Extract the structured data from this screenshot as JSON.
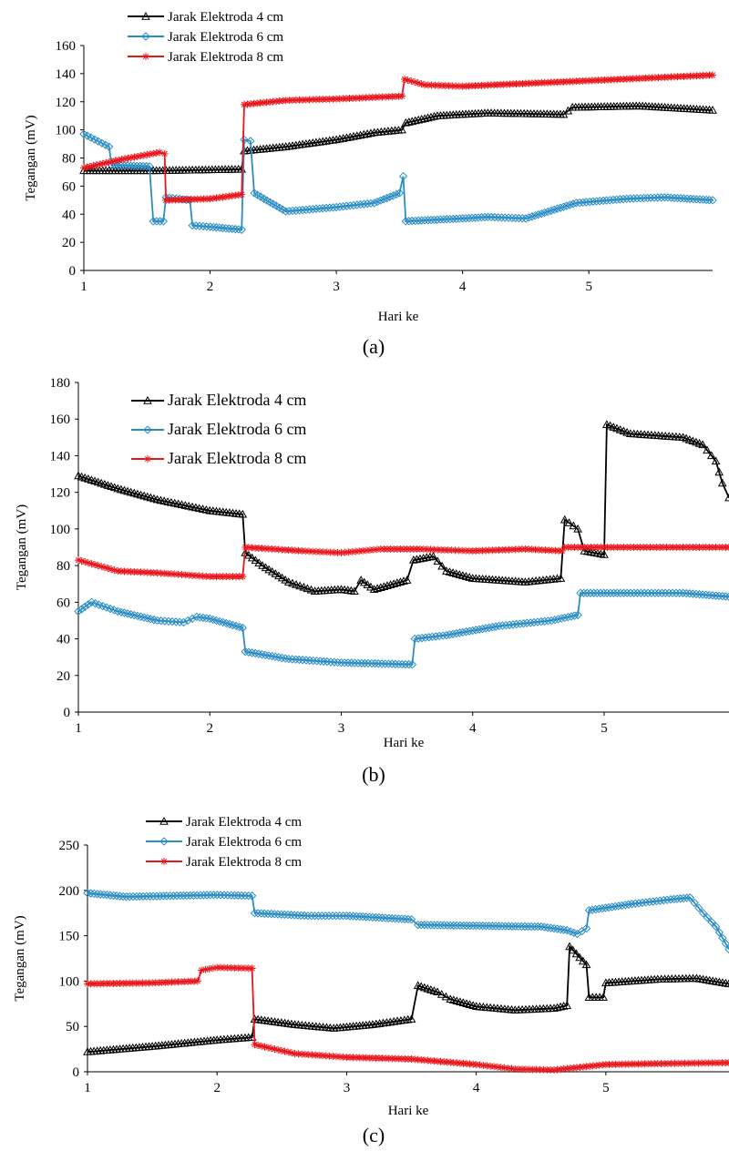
{
  "figure": {
    "colors": {
      "series4": "#000000",
      "series6": "#2b8cc4",
      "series8": "#e8161b",
      "axis": "#000000"
    }
  },
  "chart_data": [
    {
      "type": "line",
      "panel_label": "(a)",
      "xlabel": "Hari ke",
      "ylabel": "Tegangan (mV)",
      "xlim": [
        1,
        5.98
      ],
      "ylim": [
        0,
        160
      ],
      "xticks": [
        1,
        2,
        3,
        4,
        5
      ],
      "yticks": [
        0,
        20,
        40,
        60,
        80,
        100,
        120,
        140,
        160
      ],
      "grid": false,
      "legend_position": "top-left",
      "series": [
        {
          "name": "Jarak Elektroda 4 cm",
          "marker": "triangle",
          "points": [
            [
              1,
              71
            ],
            [
              1.6,
              71
            ],
            [
              2.25,
              72
            ],
            [
              2.27,
              85
            ],
            [
              2.6,
              88
            ],
            [
              3.0,
              93
            ],
            [
              3.3,
              98
            ],
            [
              3.52,
              100
            ],
            [
              3.55,
              105
            ],
            [
              3.8,
              110
            ],
            [
              4.2,
              112
            ],
            [
              4.8,
              111
            ],
            [
              4.87,
              116
            ],
            [
              5.4,
              117
            ],
            [
              5.98,
              114
            ]
          ]
        },
        {
          "name": "Jarak Elektroda 6 cm",
          "marker": "diamond",
          "points": [
            [
              1,
              97
            ],
            [
              1.2,
              88
            ],
            [
              1.22,
              75
            ],
            [
              1.52,
              74
            ],
            [
              1.55,
              35
            ],
            [
              1.63,
              35
            ],
            [
              1.65,
              52
            ],
            [
              1.84,
              50
            ],
            [
              1.86,
              32
            ],
            [
              2.0,
              31
            ],
            [
              2.25,
              29
            ],
            [
              2.27,
              93
            ],
            [
              2.32,
              92
            ],
            [
              2.35,
              55
            ],
            [
              2.6,
              42
            ],
            [
              3.0,
              45
            ],
            [
              3.3,
              48
            ],
            [
              3.5,
              55
            ],
            [
              3.53,
              67
            ],
            [
              3.55,
              35
            ],
            [
              4.0,
              37
            ],
            [
              4.2,
              38
            ],
            [
              4.5,
              37
            ],
            [
              4.9,
              48
            ],
            [
              5.3,
              51
            ],
            [
              5.6,
              52
            ],
            [
              5.98,
              50
            ]
          ]
        },
        {
          "name": "Jarak Elektroda 8 cm",
          "marker": "star",
          "points": [
            [
              1,
              73
            ],
            [
              1.3,
              79
            ],
            [
              1.6,
              84
            ],
            [
              1.64,
              83
            ],
            [
              1.65,
              50
            ],
            [
              2.0,
              51
            ],
            [
              2.25,
              54
            ],
            [
              2.27,
              118
            ],
            [
              2.6,
              121
            ],
            [
              3.0,
              122
            ],
            [
              3.52,
              124
            ],
            [
              3.54,
              136
            ],
            [
              3.7,
              132
            ],
            [
              4.0,
              131
            ],
            [
              4.5,
              133
            ],
            [
              5.0,
              135
            ],
            [
              5.5,
              137
            ],
            [
              5.98,
              139
            ]
          ]
        }
      ]
    },
    {
      "type": "line",
      "panel_label": "(b)",
      "xlabel": "Hari ke",
      "ylabel": "Tegangan (mV)",
      "xlim": [
        1,
        5.95
      ],
      "ylim": [
        0,
        180
      ],
      "xticks": [
        1,
        2,
        3,
        4,
        5
      ],
      "yticks": [
        0,
        20,
        40,
        60,
        80,
        100,
        120,
        140,
        160,
        180
      ],
      "grid": false,
      "legend_position": "top-left",
      "series": [
        {
          "name": "Jarak Elektroda 4 cm",
          "marker": "triangle",
          "points": [
            [
              1,
              129
            ],
            [
              1.3,
              122
            ],
            [
              1.6,
              116
            ],
            [
              2.0,
              110
            ],
            [
              2.25,
              108
            ],
            [
              2.27,
              87
            ],
            [
              2.4,
              80
            ],
            [
              2.6,
              71
            ],
            [
              2.8,
              66
            ],
            [
              3.0,
              67
            ],
            [
              3.1,
              66
            ],
            [
              3.15,
              72
            ],
            [
              3.25,
              67
            ],
            [
              3.5,
              72
            ],
            [
              3.55,
              83
            ],
            [
              3.7,
              85
            ],
            [
              3.8,
              77
            ],
            [
              4.0,
              73
            ],
            [
              4.4,
              71
            ],
            [
              4.67,
              73
            ],
            [
              4.7,
              105
            ],
            [
              4.8,
              100
            ],
            [
              4.85,
              88
            ],
            [
              5.0,
              86
            ],
            [
              5.02,
              157
            ],
            [
              5.2,
              152
            ],
            [
              5.6,
              150
            ],
            [
              5.75,
              146
            ],
            [
              5.85,
              137
            ],
            [
              5.9,
              125
            ],
            [
              5.95,
              117
            ]
          ]
        },
        {
          "name": "Jarak Elektroda 6 cm",
          "marker": "diamond",
          "points": [
            [
              1,
              55
            ],
            [
              1.1,
              60
            ],
            [
              1.3,
              55
            ],
            [
              1.6,
              50
            ],
            [
              1.8,
              49
            ],
            [
              1.9,
              52
            ],
            [
              2.0,
              51
            ],
            [
              2.25,
              46
            ],
            [
              2.27,
              33
            ],
            [
              2.6,
              29
            ],
            [
              3.0,
              27
            ],
            [
              3.54,
              26
            ],
            [
              3.56,
              40
            ],
            [
              3.8,
              42
            ],
            [
              4.2,
              47
            ],
            [
              4.6,
              50
            ],
            [
              4.8,
              53
            ],
            [
              4.82,
              65
            ],
            [
              5.2,
              65
            ],
            [
              5.6,
              65
            ],
            [
              5.95,
              63
            ]
          ]
        },
        {
          "name": "Jarak Elektroda 8 cm",
          "marker": "star",
          "points": [
            [
              1,
              83
            ],
            [
              1.3,
              77
            ],
            [
              1.6,
              76
            ],
            [
              2.0,
              74
            ],
            [
              2.25,
              74
            ],
            [
              2.27,
              90
            ],
            [
              2.7,
              88
            ],
            [
              3.0,
              87
            ],
            [
              3.3,
              89
            ],
            [
              3.6,
              89
            ],
            [
              4.0,
              88
            ],
            [
              4.4,
              89
            ],
            [
              4.68,
              88
            ],
            [
              4.7,
              90
            ],
            [
              5.2,
              90
            ],
            [
              5.95,
              90
            ]
          ]
        }
      ]
    },
    {
      "type": "line",
      "panel_label": "(c)",
      "xlabel": "Hari ke",
      "ylabel": "Tegangan (mV)",
      "xlim": [
        1,
        5.95
      ],
      "ylim": [
        0,
        250
      ],
      "xticks": [
        1,
        2,
        3,
        4,
        5
      ],
      "yticks": [
        0,
        50,
        100,
        150,
        200,
        250
      ],
      "grid": false,
      "legend_position": "top-left",
      "series": [
        {
          "name": "Jarak Elektroda 4 cm",
          "marker": "triangle",
          "points": [
            [
              1,
              22
            ],
            [
              1.5,
              28
            ],
            [
              2.0,
              35
            ],
            [
              2.27,
              38
            ],
            [
              2.29,
              58
            ],
            [
              2.6,
              52
            ],
            [
              2.9,
              48
            ],
            [
              3.2,
              52
            ],
            [
              3.5,
              58
            ],
            [
              3.55,
              95
            ],
            [
              3.7,
              88
            ],
            [
              3.8,
              80
            ],
            [
              4.0,
              72
            ],
            [
              4.3,
              68
            ],
            [
              4.6,
              70
            ],
            [
              4.7,
              73
            ],
            [
              4.72,
              138
            ],
            [
              4.85,
              118
            ],
            [
              4.87,
              82
            ],
            [
              4.98,
              82
            ],
            [
              5.0,
              98
            ],
            [
              5.4,
              102
            ],
            [
              5.7,
              103
            ],
            [
              5.95,
              97
            ]
          ]
        },
        {
          "name": "Jarak Elektroda 6 cm",
          "marker": "diamond",
          "points": [
            [
              1,
              197
            ],
            [
              1.3,
              193
            ],
            [
              2.0,
              195
            ],
            [
              2.27,
              194
            ],
            [
              2.29,
              175
            ],
            [
              2.7,
              172
            ],
            [
              3.0,
              172
            ],
            [
              3.5,
              168
            ],
            [
              3.55,
              162
            ],
            [
              4.0,
              161
            ],
            [
              4.5,
              160
            ],
            [
              4.7,
              156
            ],
            [
              4.78,
              152
            ],
            [
              4.85,
              158
            ],
            [
              4.87,
              178
            ],
            [
              5.2,
              185
            ],
            [
              5.5,
              190
            ],
            [
              5.65,
              192
            ],
            [
              5.75,
              175
            ],
            [
              5.85,
              160
            ],
            [
              5.95,
              135
            ]
          ]
        },
        {
          "name": "Jarak Elektroda 8 cm",
          "marker": "star",
          "points": [
            [
              1,
              97
            ],
            [
              1.5,
              98
            ],
            [
              1.85,
              100
            ],
            [
              1.88,
              112
            ],
            [
              2.0,
              115
            ],
            [
              2.27,
              114
            ],
            [
              2.29,
              30
            ],
            [
              2.6,
              20
            ],
            [
              3.0,
              16
            ],
            [
              3.5,
              14
            ],
            [
              4.0,
              8
            ],
            [
              4.3,
              3
            ],
            [
              4.6,
              2
            ],
            [
              4.8,
              5
            ],
            [
              5.0,
              8
            ],
            [
              5.4,
              9
            ],
            [
              5.95,
              10
            ]
          ]
        }
      ]
    }
  ]
}
